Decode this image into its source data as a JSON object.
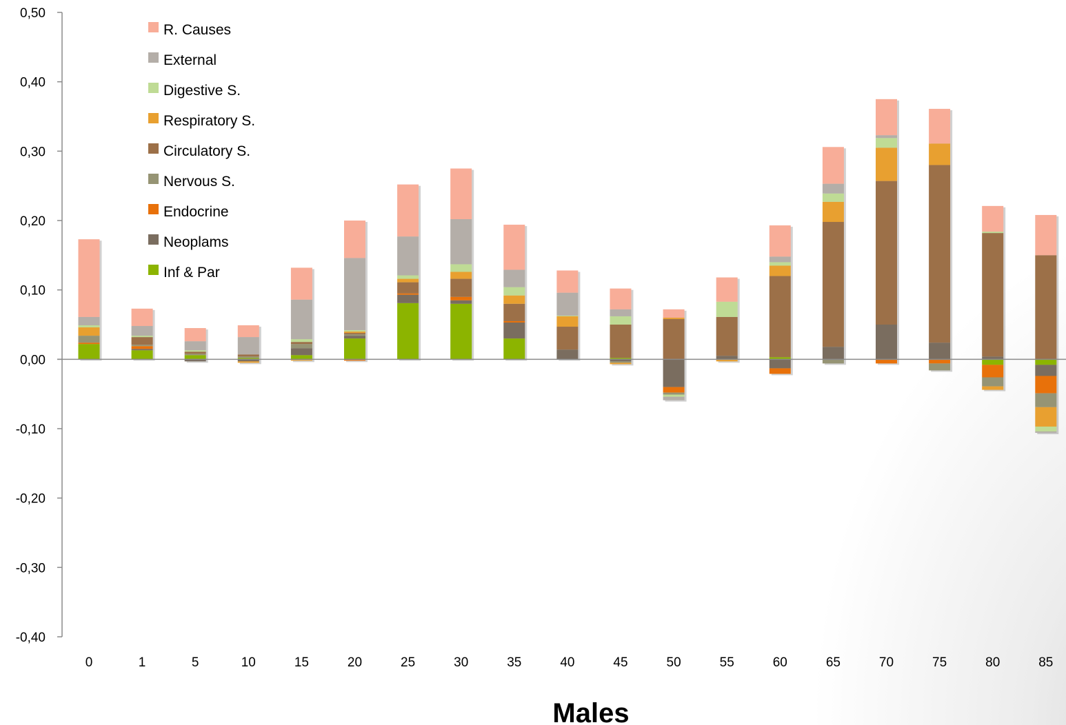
{
  "chart_data": {
    "type": "bar",
    "stacked": true,
    "title": "Males",
    "xlabel": "",
    "ylabel": "",
    "ylim": [
      -0.4,
      0.5
    ],
    "yticks": [
      "-0,40",
      "-0,30",
      "-0,20",
      "-0,10",
      "0,00",
      "0,10",
      "0,20",
      "0,30",
      "0,40",
      "0,50"
    ],
    "yticks_values": [
      -0.4,
      -0.3,
      -0.2,
      -0.1,
      0.0,
      0.1,
      0.2,
      0.3,
      0.4,
      0.5
    ],
    "categories": [
      "0",
      "1",
      "5",
      "10",
      "15",
      "20",
      "25",
      "30",
      "35",
      "40",
      "45",
      "50",
      "55",
      "60",
      "65",
      "70",
      "75",
      "80",
      "85"
    ],
    "grid": false,
    "legend_position": "top-left",
    "legend_order": [
      "R. Causes",
      "External",
      "Digestive S.",
      "Respiratory S.",
      "Circulatory S.",
      "Nervous S.",
      "Endocrine",
      "Neoplams",
      "Inf & Par"
    ],
    "series": [
      {
        "name": "Inf & Par",
        "color": "#8cb400",
        "values": [
          0.022,
          0.013,
          0.006,
          0.002,
          0.006,
          0.03,
          0.081,
          0.08,
          0.03,
          0.0,
          0.002,
          0.0,
          0.0,
          0.003,
          0.0,
          0.0,
          0.0,
          -0.008,
          -0.008
        ]
      },
      {
        "name": "Neoplams",
        "color": "#7a6d5f",
        "values": [
          0.0,
          0.002,
          -0.003,
          -0.003,
          0.01,
          0.004,
          0.012,
          0.005,
          0.023,
          0.014,
          -0.003,
          -0.04,
          0.005,
          -0.013,
          0.018,
          0.05,
          0.024,
          0.004,
          -0.016
        ]
      },
      {
        "name": "Endocrine",
        "color": "#e8710a",
        "values": [
          0.002,
          0.004,
          0.0,
          0.0,
          0.0,
          -0.002,
          0.002,
          0.005,
          0.002,
          0.0,
          0.0,
          -0.008,
          0.0,
          -0.008,
          0.0,
          -0.006,
          -0.006,
          -0.018,
          -0.025
        ]
      },
      {
        "name": "Nervous S.",
        "color": "#969474",
        "values": [
          0.01,
          0.002,
          0.002,
          0.002,
          0.006,
          0.002,
          0.0,
          0.0,
          0.0,
          0.0,
          -0.002,
          -0.003,
          0.0,
          0.0,
          -0.006,
          0.0,
          -0.01,
          -0.013,
          -0.02
        ]
      },
      {
        "name": "Circulatory S.",
        "color": "#9c7048",
        "values": [
          0.0,
          0.011,
          0.003,
          0.003,
          0.003,
          0.002,
          0.016,
          0.026,
          0.025,
          0.033,
          0.048,
          0.058,
          0.056,
          0.117,
          0.18,
          0.207,
          0.256,
          0.178,
          0.15
        ]
      },
      {
        "name": "Respiratory S.",
        "color": "#e8a030",
        "values": [
          0.012,
          0.0,
          0.0,
          -0.002,
          -0.002,
          0.002,
          0.005,
          0.01,
          0.012,
          0.015,
          -0.002,
          0.002,
          -0.003,
          0.015,
          0.029,
          0.048,
          0.031,
          -0.005,
          -0.028
        ]
      },
      {
        "name": "Digestive S.",
        "color": "#bfdb95",
        "values": [
          0.003,
          0.002,
          0.002,
          0.0,
          0.004,
          0.002,
          0.005,
          0.011,
          0.012,
          0.001,
          0.012,
          -0.003,
          0.022,
          0.005,
          0.012,
          0.014,
          0.0,
          0.002,
          -0.007
        ]
      },
      {
        "name": "External",
        "color": "#b4aea8",
        "values": [
          0.012,
          0.014,
          0.013,
          0.025,
          0.057,
          0.104,
          0.056,
          0.065,
          0.025,
          0.033,
          0.01,
          -0.005,
          0.0,
          0.008,
          0.014,
          0.004,
          0.0,
          0.0,
          -0.002
        ]
      },
      {
        "name": "R. Causes",
        "color": "#f8ad98",
        "values": [
          0.112,
          0.025,
          0.019,
          0.017,
          0.046,
          0.054,
          0.075,
          0.073,
          0.065,
          0.032,
          0.03,
          0.012,
          0.035,
          0.045,
          0.053,
          0.052,
          0.05,
          0.037,
          0.058
        ]
      }
    ]
  }
}
